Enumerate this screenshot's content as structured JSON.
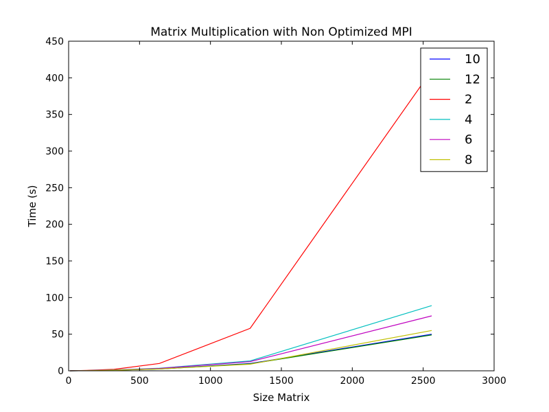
{
  "chart_data": {
    "type": "line",
    "title": "Matrix Multiplication with Non Optimized MPI",
    "xlabel": "Size Matrix",
    "ylabel": "Time (s)",
    "xlim": [
      0,
      3000
    ],
    "ylim": [
      0,
      450
    ],
    "xticks": [
      0,
      500,
      1000,
      1500,
      2000,
      2500,
      3000
    ],
    "yticks": [
      0,
      50,
      100,
      150,
      200,
      250,
      300,
      350,
      400,
      450
    ],
    "xtick_labels": [
      "0",
      "500",
      "1000",
      "1500",
      "2000",
      "2500",
      "3000"
    ],
    "ytick_labels": [
      "0",
      "50",
      "100",
      "150",
      "200",
      "250",
      "300",
      "350",
      "400",
      "450"
    ],
    "grid": false,
    "legend": "top-right",
    "x": [
      10,
      160,
      320,
      640,
      1280,
      2560
    ],
    "series": [
      {
        "name": "10",
        "color": "#0000ff",
        "values": [
          0.0,
          0.3,
          0.8,
          2.5,
          10.0,
          50.0
        ]
      },
      {
        "name": "12",
        "color": "#008000",
        "values": [
          0.0,
          0.3,
          0.8,
          2.4,
          9.5,
          49.0
        ]
      },
      {
        "name": "2",
        "color": "#ff0000",
        "values": [
          0.0,
          0.8,
          2.0,
          10.0,
          58.0,
          410.0
        ]
      },
      {
        "name": "4",
        "color": "#00bfbf",
        "values": [
          0.0,
          0.5,
          1.2,
          3.5,
          13.5,
          89.0
        ]
      },
      {
        "name": "6",
        "color": "#bf00bf",
        "values": [
          0.0,
          0.4,
          1.0,
          3.2,
          12.5,
          75.0
        ]
      },
      {
        "name": "8",
        "color": "#bfbf00",
        "values": [
          0.0,
          0.3,
          0.8,
          2.5,
          9.0,
          55.0
        ]
      }
    ]
  }
}
